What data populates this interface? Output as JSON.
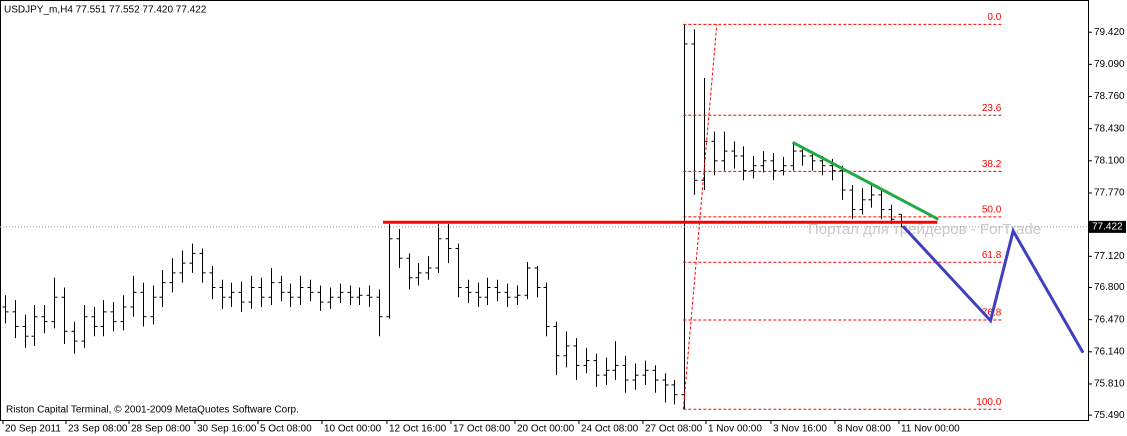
{
  "chart_data": {
    "type": "ohlc",
    "title": "USDJPY_m,H4  77.551 77.552 77.420 77.422",
    "copyright": "Riston Capital Terminal, © 2001-2009 MetaQuotes Software Corp.",
    "watermark": "Портал для трейдеров - ForTrade",
    "color": "#000000",
    "xlim": [
      -0.5,
      110
    ],
    "ylim": [
      75.44,
      79.73
    ],
    "yticks": [
      {
        "value": 79.42,
        "label": "79.420"
      },
      {
        "value": 79.09,
        "label": "79.090"
      },
      {
        "value": 78.76,
        "label": "78.760"
      },
      {
        "value": 78.43,
        "label": "78.430"
      },
      {
        "value": 78.1,
        "label": "78.100"
      },
      {
        "value": 77.77,
        "label": "77.770"
      },
      {
        "value": 77.12,
        "label": "77.120"
      },
      {
        "value": 76.8,
        "label": "76.800"
      },
      {
        "value": 76.47,
        "label": "76.470"
      },
      {
        "value": 76.14,
        "label": "76.140"
      },
      {
        "value": 75.81,
        "label": "75.810"
      },
      {
        "value": 75.49,
        "label": "75.490"
      }
    ],
    "xticks": [
      {
        "value": -0.2,
        "label": "20 Sep 2011"
      },
      {
        "value": 6.2,
        "label": "23 Sep 08:00"
      },
      {
        "value": 12.6,
        "label": "28 Sep 08:00"
      },
      {
        "value": 19.3,
        "label": "30 Sep 16:00"
      },
      {
        "value": 25.7,
        "label": "5 Oct 08:00"
      },
      {
        "value": 32.2,
        "label": "10 Oct 00:00"
      },
      {
        "value": 38.8,
        "label": "12 Oct 16:00"
      },
      {
        "value": 45.3,
        "label": "17 Oct 08:00"
      },
      {
        "value": 51.8,
        "label": "20 Oct 00:00"
      },
      {
        "value": 58.3,
        "label": "24 Oct 08:00"
      },
      {
        "value": 64.8,
        "label": "27 Oct 08:00"
      },
      {
        "value": 71.2,
        "label": "1 Nov 00:00"
      },
      {
        "value": 77.8,
        "label": "3 Nov 16:00"
      },
      {
        "value": 84.3,
        "label": "8 Nov 08:00"
      },
      {
        "value": 90.8,
        "label": "11 Nov 00:00"
      }
    ],
    "open": [
      76.6,
      76.55,
      76.4,
      76.3,
      76.5,
      76.45,
      76.7,
      76.35,
      76.25,
      76.5,
      76.4,
      76.55,
      76.45,
      76.6,
      76.75,
      76.5,
      76.7,
      76.85,
      76.95,
      77.05,
      77.15,
      76.95,
      76.8,
      76.7,
      76.75,
      76.65,
      76.8,
      76.7,
      76.85,
      76.75,
      76.7,
      76.8,
      76.75,
      76.65,
      76.7,
      76.75,
      76.7,
      76.72,
      76.7,
      76.5,
      77.3,
      77.1,
      76.9,
      76.95,
      77.0,
      77.3,
      77.2,
      76.8,
      76.75,
      76.7,
      76.8,
      76.75,
      76.7,
      76.72,
      77.0,
      76.8,
      76.4,
      76.1,
      76.2,
      76.0,
      76.05,
      75.9,
      75.95,
      76.0,
      75.85,
      75.9,
      75.95,
      75.85,
      75.8,
      75.7,
      79.3,
      77.9,
      78.3,
      78.1,
      78.2,
      78.15,
      78.0,
      78.05,
      78.1,
      78.0,
      78.05,
      78.2,
      78.15,
      78.1,
      78.05,
      78.0,
      77.8,
      77.6,
      77.7,
      77.75,
      77.6,
      77.551
    ],
    "high": [
      76.72,
      76.67,
      76.52,
      76.62,
      76.62,
      76.9,
      76.8,
      76.45,
      76.62,
      76.6,
      76.67,
      76.65,
      76.72,
      76.92,
      76.85,
      76.82,
      76.98,
      77.1,
      77.18,
      77.25,
      77.2,
      77.02,
      76.88,
      76.85,
      76.86,
      76.92,
      76.9,
      77.0,
      76.92,
      76.84,
      76.92,
      76.88,
      76.82,
      76.8,
      76.84,
      76.82,
      76.8,
      76.82,
      76.78,
      77.45,
      77.4,
      77.15,
      77.05,
      77.12,
      77.45,
      77.45,
      77.25,
      76.88,
      76.85,
      76.9,
      76.88,
      76.84,
      76.82,
      77.06,
      77.02,
      76.85,
      76.45,
      76.35,
      76.28,
      76.18,
      76.12,
      76.08,
      76.25,
      76.1,
      76.02,
      76.05,
      76.0,
      75.92,
      75.85,
      79.5,
      79.45,
      78.95,
      78.4,
      78.4,
      78.3,
      78.25,
      78.15,
      78.2,
      78.18,
      78.14,
      78.28,
      78.25,
      78.2,
      78.15,
      78.12,
      78.05,
      77.85,
      77.82,
      77.85,
      77.8,
      77.65,
      77.552
    ],
    "low": [
      76.43,
      76.28,
      76.18,
      76.2,
      76.33,
      76.38,
      76.22,
      76.12,
      76.18,
      76.3,
      76.3,
      76.35,
      76.36,
      76.5,
      76.4,
      76.42,
      76.6,
      76.75,
      76.85,
      76.95,
      76.85,
      76.68,
      76.58,
      76.6,
      76.55,
      76.58,
      76.6,
      76.62,
      76.66,
      76.6,
      76.62,
      76.66,
      76.56,
      76.58,
      76.64,
      76.62,
      76.62,
      76.6,
      76.3,
      76.48,
      77.0,
      76.78,
      76.82,
      76.88,
      76.95,
      77.05,
      76.7,
      76.64,
      76.6,
      76.62,
      76.66,
      76.6,
      76.62,
      76.68,
      76.7,
      76.3,
      75.9,
      75.98,
      75.85,
      75.92,
      75.78,
      75.8,
      75.85,
      75.72,
      75.75,
      75.8,
      75.72,
      75.62,
      75.6,
      75.55,
      77.75,
      77.8,
      77.95,
      78.0,
      78.02,
      77.9,
      77.92,
      77.98,
      77.9,
      77.95,
      78.0,
      78.05,
      78.0,
      77.95,
      77.9,
      77.7,
      77.5,
      77.55,
      77.62,
      77.5,
      77.45,
      77.42
    ],
    "close": [
      76.55,
      76.4,
      76.3,
      76.5,
      76.45,
      76.7,
      76.35,
      76.25,
      76.5,
      76.4,
      76.55,
      76.45,
      76.6,
      76.75,
      76.5,
      76.7,
      76.85,
      76.95,
      77.05,
      77.15,
      76.95,
      76.8,
      76.7,
      76.75,
      76.65,
      76.8,
      76.7,
      76.85,
      76.75,
      76.7,
      76.8,
      76.75,
      76.65,
      76.7,
      76.75,
      76.7,
      76.72,
      76.7,
      76.5,
      77.3,
      77.1,
      76.9,
      76.95,
      77.0,
      77.3,
      77.2,
      76.8,
      76.75,
      76.7,
      76.8,
      76.75,
      76.7,
      76.72,
      77.0,
      76.8,
      76.4,
      76.1,
      76.2,
      76.0,
      76.05,
      75.9,
      75.95,
      76.0,
      75.85,
      75.9,
      75.95,
      75.85,
      75.8,
      75.7,
      79.3,
      77.9,
      78.3,
      78.1,
      78.2,
      78.15,
      78.0,
      78.05,
      78.1,
      78.0,
      78.05,
      78.2,
      78.15,
      78.1,
      78.05,
      78.0,
      77.8,
      77.6,
      77.7,
      77.75,
      77.6,
      77.5,
      77.422
    ],
    "last_price": 77.422,
    "fibo": {
      "x1": 68.9,
      "price1": 75.55,
      "x2": 72.3,
      "price2": 79.5,
      "x_end": 101.4,
      "color": "#ff0000",
      "levels": [
        {
          "value": 0,
          "label": "0.0"
        },
        23.6,
        38.2,
        {
          "value": 50,
          "label": "50.0"
        },
        61.8,
        76.8,
        {
          "value": 100,
          "label": "100.0"
        }
      ]
    },
    "hline": {
      "price": 77.47,
      "x": [
        38.4,
        94.7
      ],
      "color": "#ff0000"
    },
    "trendline": {
      "x": [
        80.0,
        94.8
      ],
      "y": [
        78.29,
        77.5
      ],
      "color": "#22aa44"
    },
    "zigzag": {
      "x": [
        91.2,
        100.1,
        102.4,
        109.5
      ],
      "y": [
        77.43,
        76.46,
        77.38,
        76.13
      ],
      "color": "#3f3fbf"
    }
  }
}
